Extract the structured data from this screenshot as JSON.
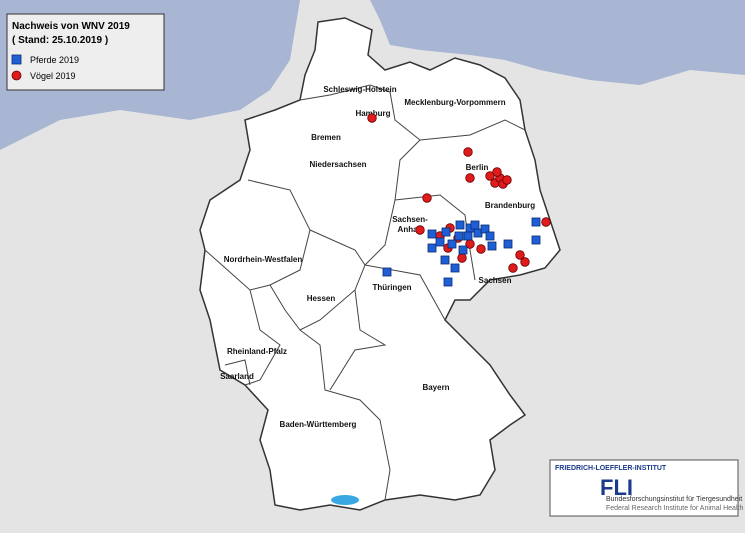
{
  "legend": {
    "title": "Nachweis von WNV 2019",
    "subtitle": "( Stand: 25.10.2019 )",
    "items": [
      "Pferde 2019",
      "Vögel 2019"
    ]
  },
  "states": [
    "Schleswig-Holstein",
    "Hamburg",
    "Mecklenburg-Vorpommern",
    "Bremen",
    "Niedersachsen",
    "Berlin",
    "Brandenburg",
    [
      "Sachsen-",
      "Anhalt"
    ],
    "Nordrhein-Westfalen",
    "Hessen",
    "Thüringen",
    "Sachsen",
    "Rheinland-Pfalz",
    "Saarland",
    "Bayern",
    "Baden-Württemberg"
  ],
  "logo": {
    "institute": "FRIEDRICH-LOEFFLER-INSTITUT",
    "mark": "FLI",
    "line1": "Bundesforschungsinstitut für Tiergesundheit",
    "line2": "Federal Research Institute for Animal Health"
  }
}
